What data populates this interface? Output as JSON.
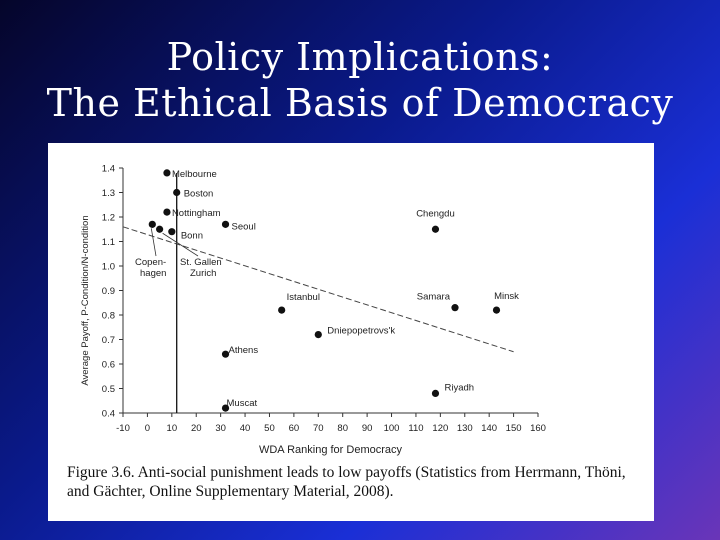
{
  "slide": {
    "title_line1": "Policy Implications:",
    "title_line2": "The Ethical Basis of Democracy",
    "caption": "Figure 3.6. Anti-social punishment leads to low payoffs (Statistics from Herrmann, Thöni, and Gächter, Online Supplementary Material, 2008)."
  },
  "chart_data": {
    "type": "scatter",
    "title": "",
    "xlabel": "WDA Ranking for Democracy",
    "ylabel": "Average Payoff, P-Condition/N-condition",
    "xlim": [
      -10,
      160
    ],
    "ylim": [
      0.4,
      1.4
    ],
    "xticks": [
      "-10",
      "0",
      "10",
      "20",
      "30",
      "40",
      "50",
      "60",
      "70",
      "80",
      "90",
      "100",
      "110",
      "120",
      "130",
      "140",
      "150",
      "160"
    ],
    "yticks": [
      "0.4",
      "0.5",
      "0.6",
      "0.7",
      "0.8",
      "0.9",
      "1.0",
      "1.1",
      "1.2",
      "1.3",
      "1.4"
    ],
    "vline_x": 12,
    "trend_line": {
      "x": [
        -10,
        150
      ],
      "y": [
        1.16,
        0.65
      ]
    },
    "points": [
      {
        "label": "Melbourne",
        "x": 8,
        "y": 1.38
      },
      {
        "label": "Boston",
        "x": 12,
        "y": 1.3
      },
      {
        "label": "Nottingham",
        "x": 8,
        "y": 1.22
      },
      {
        "label": "Seoul",
        "x": 32,
        "y": 1.17
      },
      {
        "label": "Bonn",
        "x": 10,
        "y": 1.14
      },
      {
        "label": "Chengdu",
        "x": 118,
        "y": 1.15
      },
      {
        "label": "Copenhagen",
        "x": 2,
        "y": 1.17
      },
      {
        "label": "St. Gallen",
        "x": 5,
        "y": 1.15
      },
      {
        "label": "Istanbul",
        "x": 55,
        "y": 0.82
      },
      {
        "label": "Samara",
        "x": 126,
        "y": 0.83
      },
      {
        "label": "Minsk",
        "x": 143,
        "y": 0.82
      },
      {
        "label": "Dniepopetrovs'k",
        "x": 70,
        "y": 0.72
      },
      {
        "label": "Athens",
        "x": 32,
        "y": 0.64
      },
      {
        "label": "Riyadh",
        "x": 118,
        "y": 0.48
      },
      {
        "label": "Muscat",
        "x": 32,
        "y": 0.42
      }
    ],
    "annotations": [
      {
        "text": "Copen-",
        "for": "Copenhagen"
      },
      {
        "text": "hagen",
        "for": "Copenhagen"
      },
      {
        "text": "St. Gallen",
        "for": "St. Gallen"
      },
      {
        "text": "Zurich",
        "for": "Zurich"
      }
    ]
  }
}
